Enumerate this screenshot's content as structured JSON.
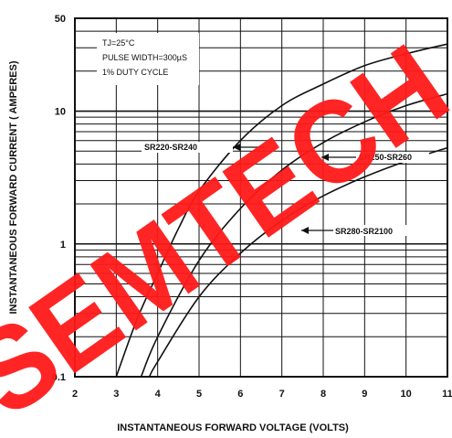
{
  "chart_data": {
    "type": "line",
    "title": "",
    "xlabel": "INSTANTANEOUS FORWARD VOLTAGE (VOLTS)",
    "ylabel": "INSTANTANEOUS FORWARD CURRENT ( AMPERES)",
    "x_ticks": [
      "2",
      "3",
      "4",
      "5",
      "6",
      "7",
      "8",
      "9",
      "10",
      "11"
    ],
    "y_ticks": [
      "0.1",
      "1",
      "10",
      "50"
    ],
    "xlim": [
      2,
      11
    ],
    "ylim": [
      0.1,
      50
    ],
    "y_scale": "log",
    "grid": true,
    "notes": [
      "TJ=25°C",
      "PULSE WIDTH=300µS",
      "1% DUTY CYCLE"
    ],
    "series": [
      {
        "name": "SR220-SR240",
        "x": [
          3.0,
          3.5,
          4.0,
          4.5,
          5.0,
          6.0,
          7.0,
          8.0,
          9.0,
          10.0,
          11.0
        ],
        "y": [
          0.1,
          0.27,
          0.6,
          1.3,
          2.5,
          6.0,
          11.0,
          16.0,
          22.0,
          27.0,
          32.0
        ]
      },
      {
        "name": "SR250-SR260",
        "x": [
          3.6,
          4.0,
          5.0,
          6.0,
          7.0,
          8.0,
          9.0,
          10.0,
          11.0
        ],
        "y": [
          0.1,
          0.2,
          0.75,
          1.85,
          3.6,
          5.8,
          8.3,
          11.0,
          13.5
        ]
      },
      {
        "name": "SR280-SR2100",
        "x": [
          3.8,
          4.0,
          5.0,
          6.0,
          7.0,
          8.0,
          9.0,
          10.0,
          11.0
        ],
        "y": [
          0.1,
          0.13,
          0.4,
          0.85,
          1.5,
          2.3,
          3.2,
          4.2,
          5.3
        ]
      }
    ]
  },
  "watermark": {
    "text": "SEMTECH",
    "color": "#ff1a1a"
  }
}
